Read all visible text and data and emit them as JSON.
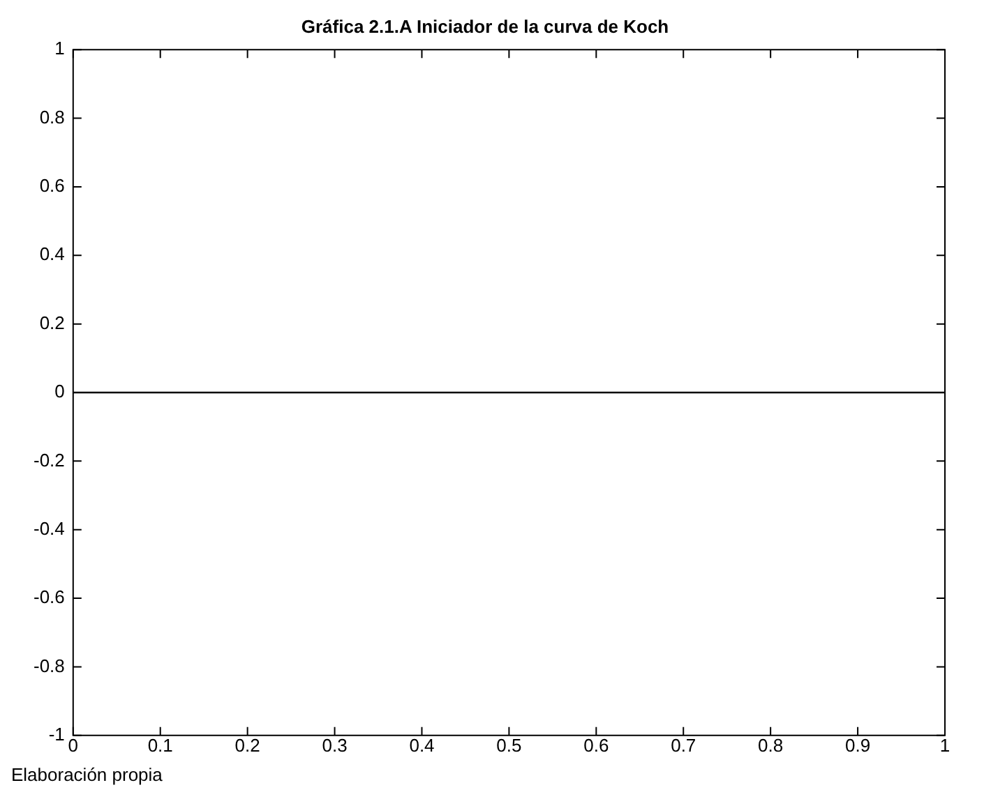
{
  "chart_data": {
    "type": "line",
    "title": "Gráfica 2.1.A Iniciador de la curva de Koch",
    "x": [
      0,
      1
    ],
    "series": [
      {
        "color": "#000000",
        "values": [
          0,
          0
        ]
      }
    ],
    "xlim": [
      0,
      1
    ],
    "xticks": [
      0,
      0.1,
      0.2,
      0.3,
      0.4,
      0.5,
      0.6,
      0.7,
      0.8,
      0.9,
      1
    ],
    "ylim": [
      -1,
      1
    ],
    "yticks": [
      -1,
      -0.8,
      -0.6,
      -0.4,
      -0.2,
      0,
      0.2,
      0.4,
      0.6,
      0.8,
      1
    ],
    "grid": false,
    "legend": false,
    "marker": "none",
    "line_style": "solid",
    "annotations": [
      "Elaboración propia"
    ]
  }
}
